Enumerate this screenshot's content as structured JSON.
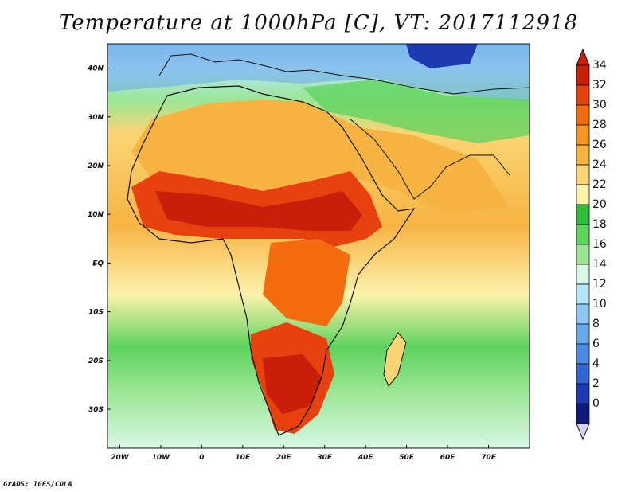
{
  "title": "Temperature at 1000hPa [C], VT: 2017112918",
  "credit": "GrADS: IGES/COLA",
  "map": {
    "lon_range": [
      -23,
      80
    ],
    "lat_range": [
      -38,
      45
    ],
    "lat_ticks": [
      {
        "value": 40,
        "label": "40N"
      },
      {
        "value": 30,
        "label": "30N"
      },
      {
        "value": 20,
        "label": "20N"
      },
      {
        "value": 10,
        "label": "10N"
      },
      {
        "value": 0,
        "label": "EQ"
      },
      {
        "value": -10,
        "label": "10S"
      },
      {
        "value": -20,
        "label": "20S"
      },
      {
        "value": -30,
        "label": "30S"
      }
    ],
    "lon_ticks": [
      {
        "value": -20,
        "label": "20W"
      },
      {
        "value": -10,
        "label": "10W"
      },
      {
        "value": 0,
        "label": "0"
      },
      {
        "value": 10,
        "label": "10E"
      },
      {
        "value": 20,
        "label": "20E"
      },
      {
        "value": 30,
        "label": "30E"
      },
      {
        "value": 40,
        "label": "40E"
      },
      {
        "value": 50,
        "label": "50E"
      },
      {
        "value": 60,
        "label": "60E"
      },
      {
        "value": 70,
        "label": "70E"
      }
    ]
  },
  "colorbar": {
    "labels": [
      "34",
      "32",
      "30",
      "28",
      "26",
      "24",
      "22",
      "20",
      "18",
      "16",
      "14",
      "12",
      "10",
      "8",
      "6",
      "4",
      "2",
      "0"
    ],
    "colors": [
      "#c81e0a",
      "#e6410f",
      "#f36d10",
      "#f6951f",
      "#f8b443",
      "#fad574",
      "#fcf2ac",
      "#2fbe3a",
      "#5ed35e",
      "#9be694",
      "#d9f7e6",
      "#b4e5f5",
      "#8ec7f0",
      "#6aa8ea",
      "#4d8ae1",
      "#3165d2",
      "#1d3ab0",
      "#101a7e"
    ]
  }
}
